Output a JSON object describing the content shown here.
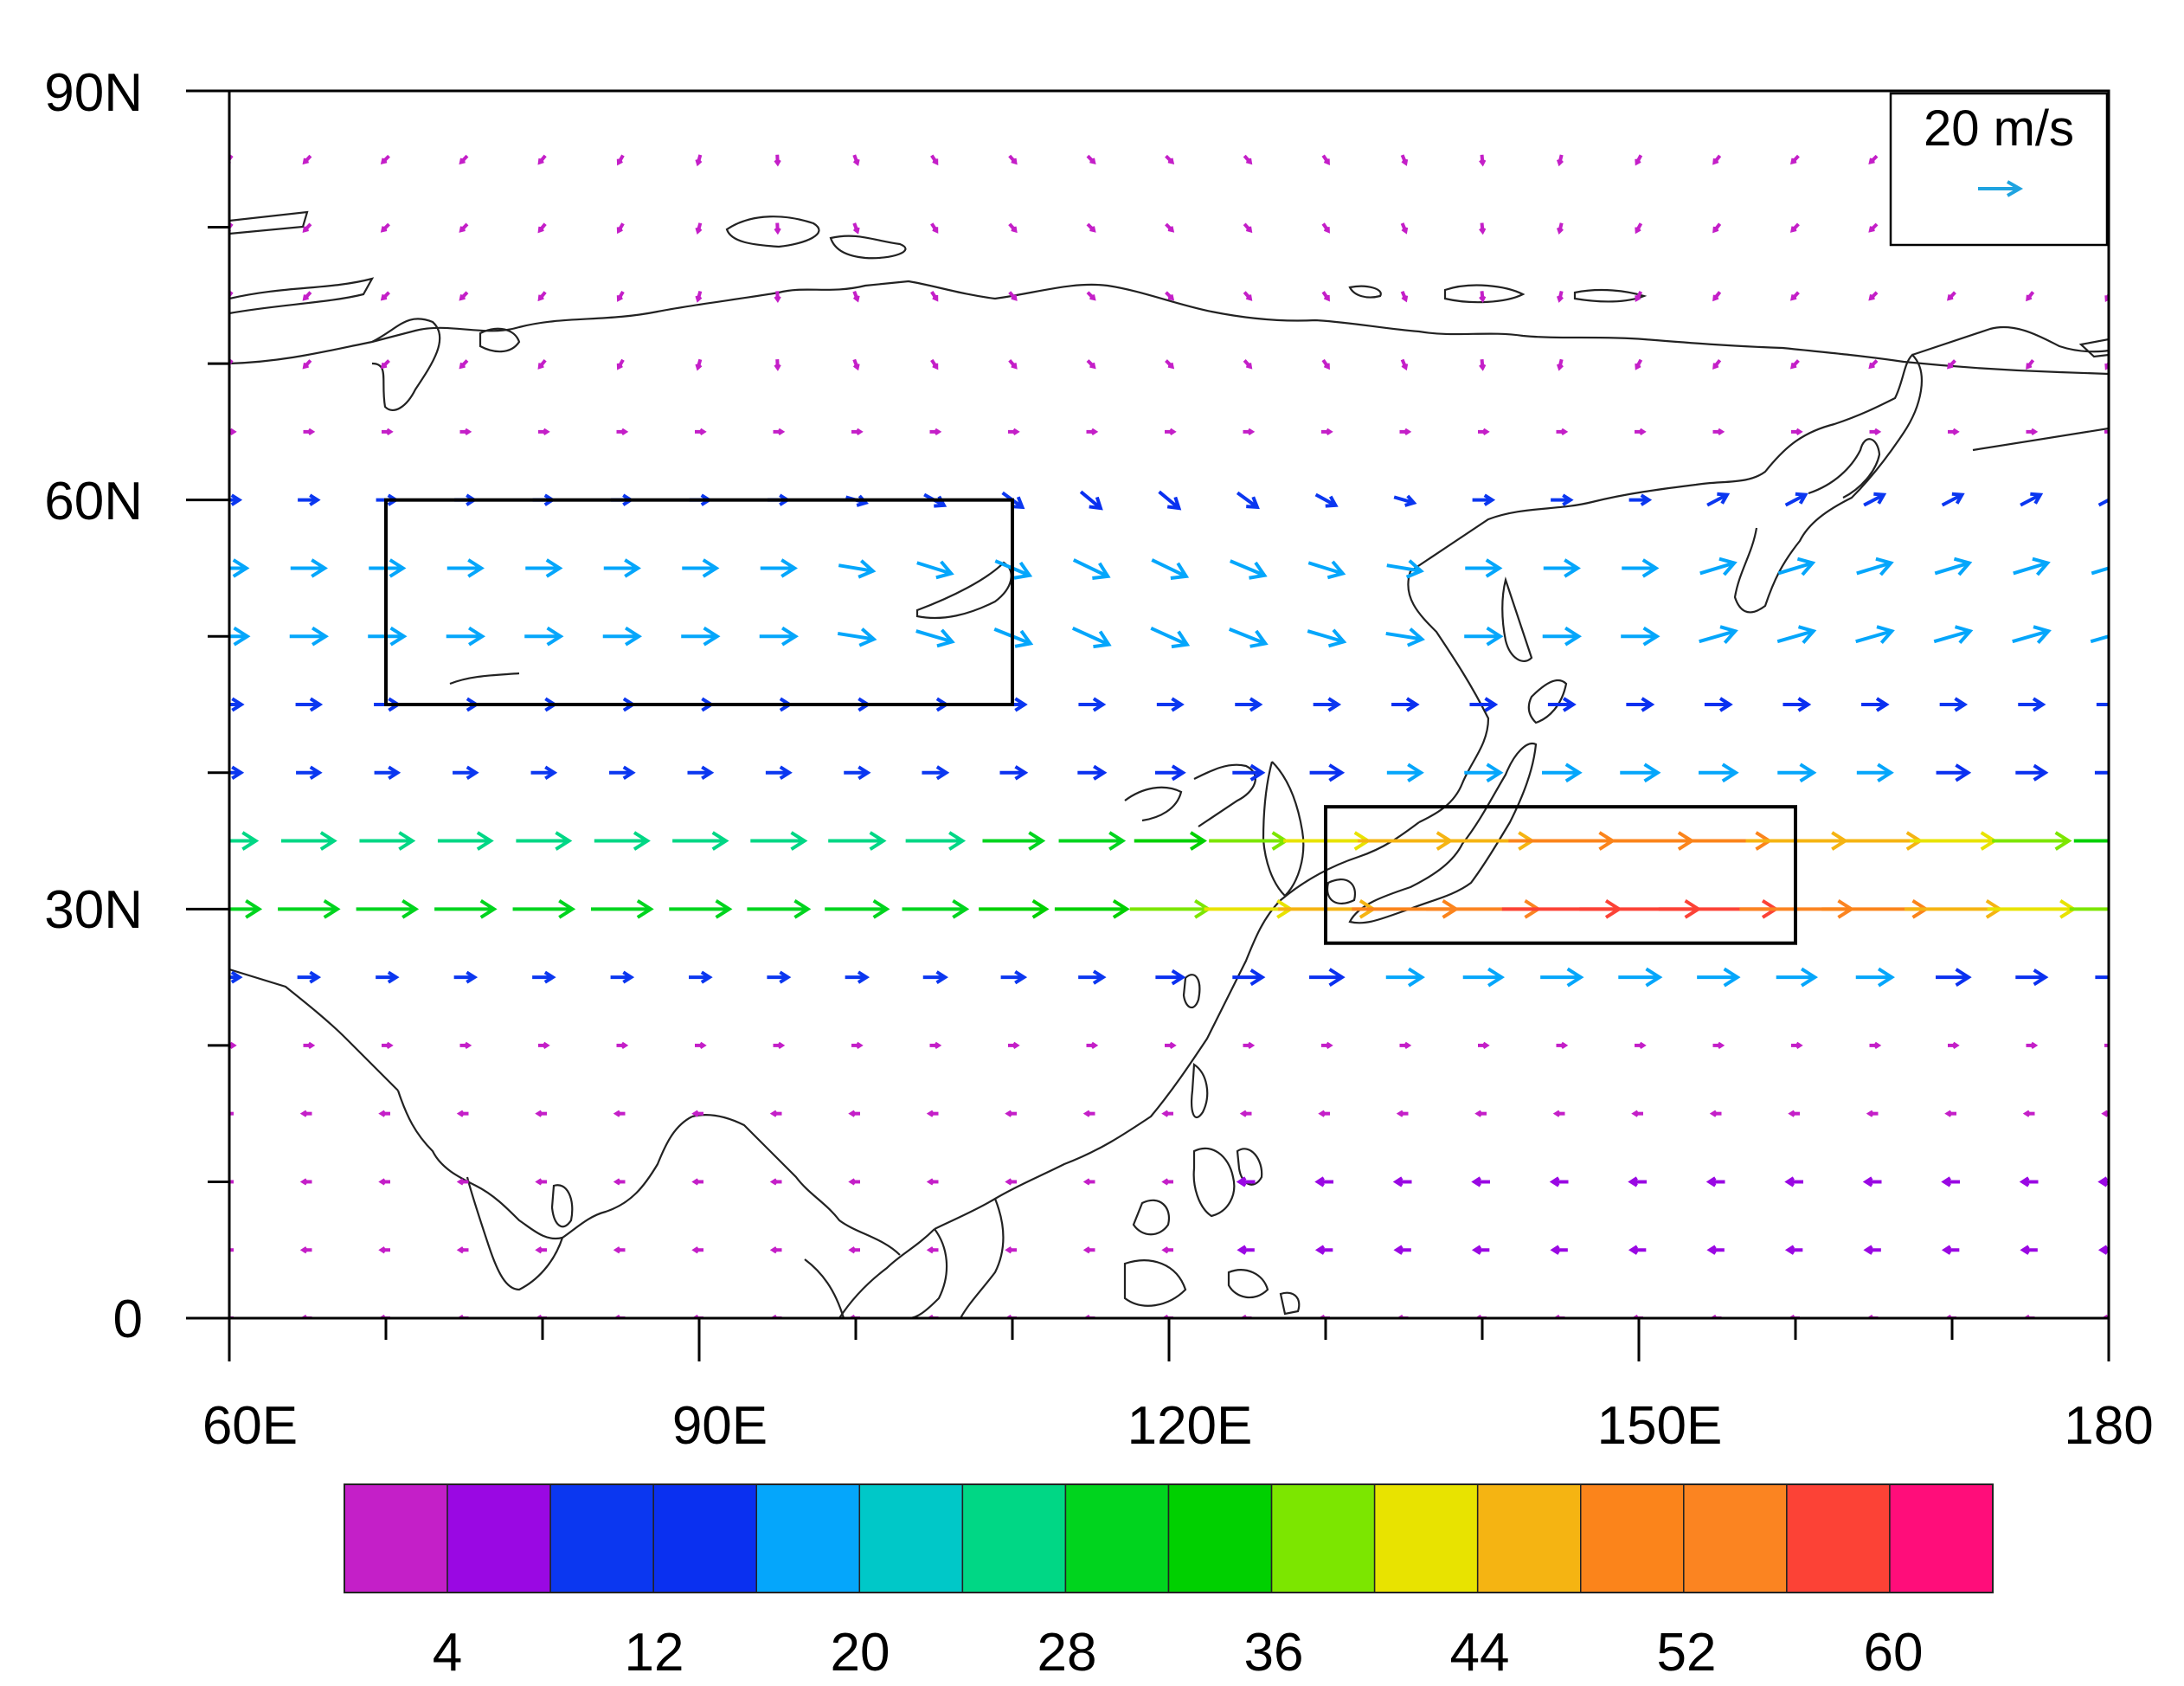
{
  "chart_data": {
    "type": "vector-map",
    "x_ticks": [
      "60E",
      "90E",
      "120E",
      "150E",
      "180"
    ],
    "y_ticks": [
      "0",
      "30N",
      "60N",
      "90N"
    ],
    "xlim": [
      60,
      180
    ],
    "ylim": [
      0,
      90
    ],
    "reference_vector": {
      "label": "20 m/s",
      "magnitude": 20,
      "color": "#1ea3e0"
    },
    "boxes": [
      {
        "name": "north-box",
        "lon": [
          70,
          110
        ],
        "lat": [
          45,
          60
        ]
      },
      {
        "name": "jet-box",
        "lon": [
          130,
          160
        ],
        "lat": [
          27.5,
          37.5
        ]
      }
    ],
    "colorbar": {
      "colors": [
        "#c41fc8",
        "#9a08e3",
        "#0b37f0",
        "#0a30f0",
        "#05a6fb",
        "#00c8c8",
        "#00d785",
        "#00d41e",
        "#00d000",
        "#7ce600",
        "#e8e300",
        "#f5b412",
        "#fb841b",
        "#fb8421",
        "#fc4236",
        "#ff0d7a"
      ],
      "levels": [
        4,
        8,
        12,
        16,
        20,
        24,
        28,
        32,
        36,
        40,
        44,
        48,
        52,
        56,
        60
      ],
      "labels": [
        "4",
        "12",
        "20",
        "28",
        "36",
        "44",
        "52",
        "60"
      ],
      "label_values": [
        4,
        12,
        20,
        28,
        36,
        44,
        52,
        60
      ]
    }
  }
}
